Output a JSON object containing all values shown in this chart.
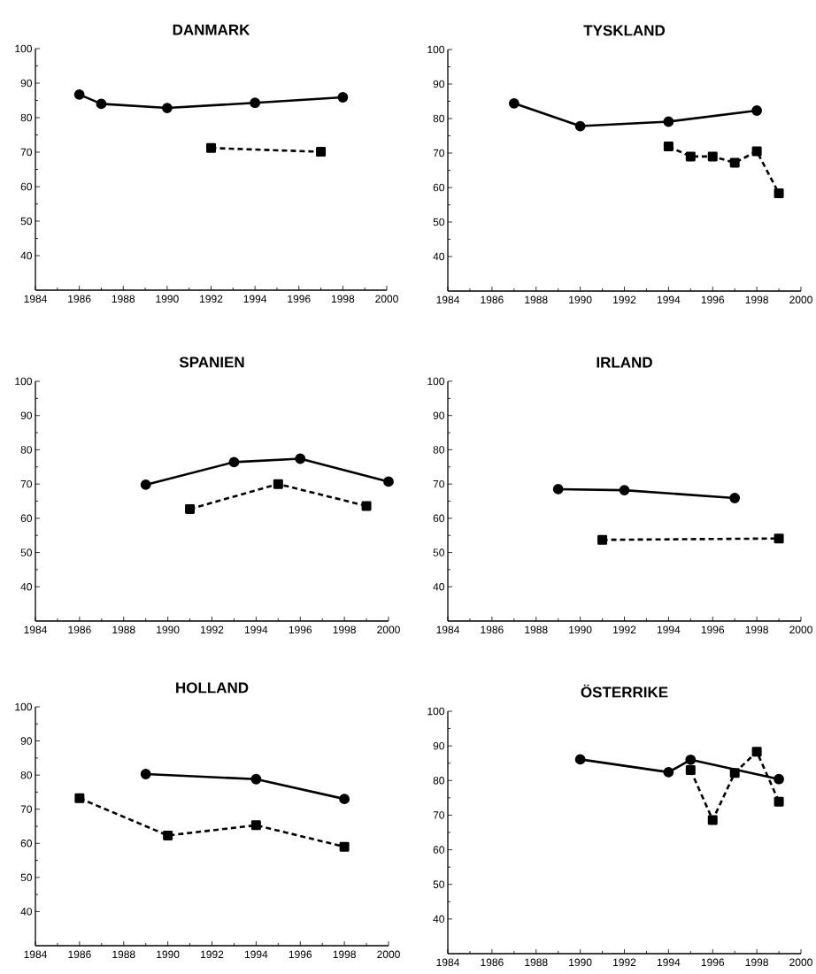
{
  "chart_data": [
    {
      "type": "line",
      "title": "DANMARK",
      "xlim": [
        1984,
        2000
      ],
      "ylim": [
        30,
        100
      ],
      "xticks": [
        1984,
        1986,
        1988,
        1990,
        1992,
        1994,
        1996,
        1998,
        2000
      ],
      "yticks": [
        40,
        50,
        60,
        70,
        80,
        90,
        100
      ],
      "series": [
        {
          "color": "#000000",
          "marker": "circle",
          "line_style": "solid",
          "x": [
            1986,
            1987,
            1990,
            1994,
            1998
          ],
          "values": [
            86.7,
            84.0,
            82.8,
            84.3,
            85.9
          ]
        },
        {
          "color": "#000000",
          "marker": "square",
          "line_style": "dashed",
          "x": [
            1992,
            1997
          ],
          "values": [
            71.2,
            70.1
          ]
        }
      ]
    },
    {
      "type": "line",
      "title": "TYSKLAND",
      "xlim": [
        1984,
        2000
      ],
      "ylim": [
        30,
        100
      ],
      "xticks": [
        1984,
        1986,
        1988,
        1990,
        1992,
        1994,
        1996,
        1998,
        2000
      ],
      "yticks": [
        40,
        50,
        60,
        70,
        80,
        90,
        100
      ],
      "series": [
        {
          "color": "#000000",
          "marker": "circle",
          "line_style": "solid",
          "x": [
            1987,
            1990,
            1994,
            1998
          ],
          "values": [
            84.4,
            77.8,
            79.1,
            82.3
          ]
        },
        {
          "color": "#000000",
          "marker": "square",
          "line_style": "dashed",
          "x": [
            1994,
            1995,
            1996,
            1997,
            1998,
            1999
          ],
          "values": [
            71.9,
            69.0,
            69.0,
            67.2,
            70.5,
            58.3
          ]
        }
      ]
    },
    {
      "type": "line",
      "title": "SPANIEN",
      "xlim": [
        1984,
        2000
      ],
      "ylim": [
        30,
        100
      ],
      "xticks": [
        1984,
        1986,
        1988,
        1990,
        1992,
        1994,
        1996,
        1998,
        2000
      ],
      "yticks": [
        40,
        50,
        60,
        70,
        80,
        90,
        100
      ],
      "series": [
        {
          "color": "#000000",
          "marker": "circle",
          "line_style": "solid",
          "x": [
            1989,
            1993,
            1996,
            2000
          ],
          "values": [
            69.8,
            76.4,
            77.4,
            70.7
          ]
        },
        {
          "color": "#000000",
          "marker": "square",
          "line_style": "dashed",
          "x": [
            1991,
            1995,
            1999
          ],
          "values": [
            62.7,
            70.0,
            63.6
          ]
        }
      ]
    },
    {
      "type": "line",
      "title": "IRLAND",
      "xlim": [
        1984,
        2000
      ],
      "ylim": [
        30,
        100
      ],
      "xticks": [
        1984,
        1986,
        1988,
        1990,
        1992,
        1994,
        1996,
        1998,
        2000
      ],
      "yticks": [
        40,
        50,
        60,
        70,
        80,
        90,
        100
      ],
      "series": [
        {
          "color": "#000000",
          "marker": "circle",
          "line_style": "solid",
          "x": [
            1989,
            1992,
            1997
          ],
          "values": [
            68.5,
            68.2,
            65.9
          ]
        },
        {
          "color": "#000000",
          "marker": "square",
          "line_style": "dashed",
          "x": [
            1991,
            1999
          ],
          "values": [
            53.7,
            54.1
          ]
        }
      ]
    },
    {
      "type": "line",
      "title": "HOLLAND",
      "xlim": [
        1984,
        2000
      ],
      "ylim": [
        30,
        100
      ],
      "xticks": [
        1984,
        1986,
        1988,
        1990,
        1992,
        1994,
        1996,
        1998,
        2000
      ],
      "yticks": [
        40,
        50,
        60,
        70,
        80,
        90,
        100
      ],
      "series": [
        {
          "color": "#000000",
          "marker": "circle",
          "line_style": "solid",
          "x": [
            1989,
            1994,
            1998
          ],
          "values": [
            80.3,
            78.8,
            73.0
          ]
        },
        {
          "color": "#000000",
          "marker": "square",
          "line_style": "dashed",
          "x": [
            1986,
            1990,
            1994,
            1998
          ],
          "values": [
            73.2,
            62.3,
            65.3,
            59.0
          ]
        }
      ]
    },
    {
      "type": "line",
      "title": "ÖSTERRIKE",
      "xlim": [
        1984,
        2000
      ],
      "ylim": [
        30,
        100
      ],
      "xticks": [
        1984,
        1986,
        1988,
        1990,
        1992,
        1994,
        1996,
        1998,
        2000
      ],
      "yticks": [
        40,
        50,
        60,
        70,
        80,
        90,
        100
      ],
      "series": [
        {
          "color": "#000000",
          "marker": "circle",
          "line_style": "solid",
          "x": [
            1990,
            1994,
            1995,
            1999
          ],
          "values": [
            86.1,
            82.4,
            86.0,
            80.4
          ]
        },
        {
          "color": "#000000",
          "marker": "square",
          "line_style": "dashed",
          "x": [
            1995,
            1996,
            1997,
            1998,
            1999
          ],
          "values": [
            83.0,
            68.6,
            82.2,
            88.3,
            73.9
          ]
        }
      ]
    }
  ]
}
